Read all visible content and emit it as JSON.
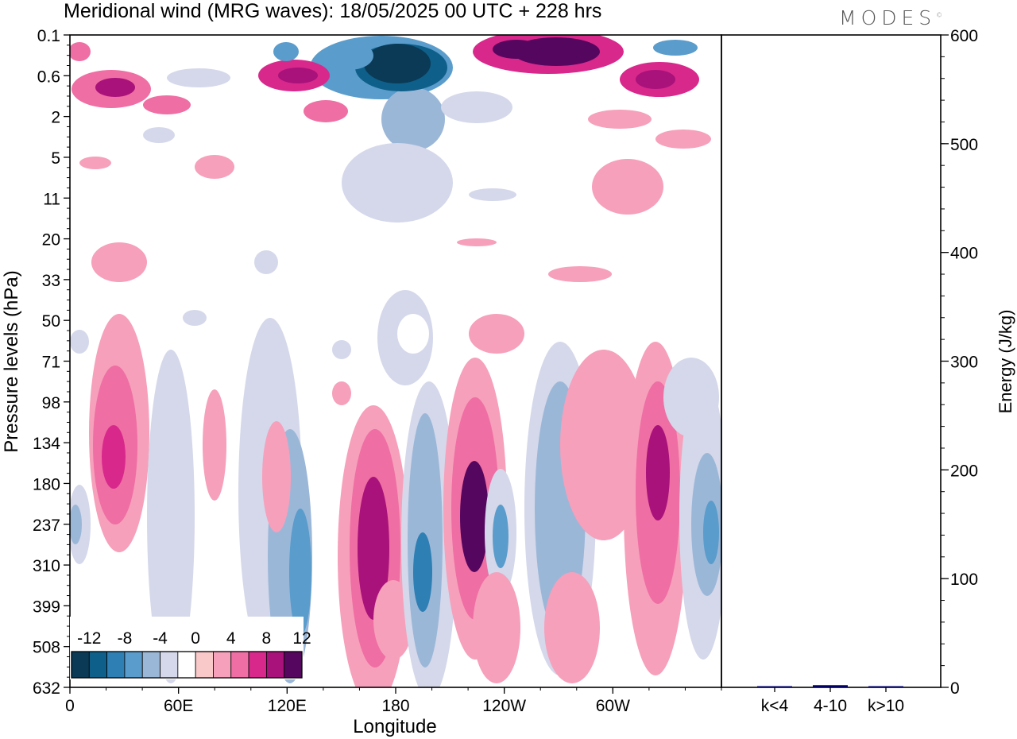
{
  "header": {
    "title": "Meridional wind (MRG waves):  18/05/2025  00 UTC  + 228 hrs",
    "brand": "MODES",
    "brand_mark": "©"
  },
  "chart_data": [
    {
      "type": "heatmap",
      "xlabel": "Longitude",
      "ylabel": "Pressure levels (hPa)",
      "x_ticks": [
        "0",
        "60E",
        "120E",
        "180",
        "120W",
        "60W"
      ],
      "x_tick_values": [
        0,
        60,
        120,
        180,
        240,
        300
      ],
      "xlim": [
        0,
        360
      ],
      "y_ticks": [
        "0.1",
        "0.6",
        "2",
        "5",
        "11",
        "20",
        "33",
        "50",
        "71",
        "98",
        "134",
        "180",
        "237",
        "310",
        "399",
        "508",
        "632"
      ],
      "colorbar_ticks": [
        "-12",
        "-8",
        "-4",
        "0",
        "4",
        "8",
        "12"
      ],
      "color_levels": [
        -14,
        -12,
        -10,
        -8,
        -6,
        -4,
        -2,
        2,
        4,
        6,
        8,
        10,
        12,
        14
      ],
      "colors": [
        "#0a3a55",
        "#0e5f8a",
        "#2e7fb3",
        "#5a9ccb",
        "#9bb7d8",
        "#d4d8ea",
        "#ffffff",
        "#f9c9c9",
        "#f6a0bb",
        "#ef6ea3",
        "#d8288c",
        "#a8127a",
        "#55065e"
      ],
      "features": [
        {
          "lon": 172,
          "level": "0.1",
          "value": -14
        },
        {
          "lon": 258,
          "level": "0.1",
          "value": 14
        },
        {
          "lon": 25,
          "level": "0.6",
          "value": 10
        },
        {
          "lon": 120,
          "level": "0.6",
          "value": 10
        },
        {
          "lon": 325,
          "level": "0.6",
          "value": 10
        },
        {
          "lon": 165,
          "level": "237",
          "value": 10
        },
        {
          "lon": 224,
          "level": "237",
          "value": 12
        },
        {
          "lon": 325,
          "level": "180",
          "value": 10
        },
        {
          "lon": 197,
          "level": "310",
          "value": -8
        },
        {
          "lon": 265,
          "level": "237",
          "value": -6
        },
        {
          "lon": 128,
          "level": "310",
          "value": -6
        },
        {
          "lon": 27,
          "level": "134",
          "value": 8
        }
      ]
    },
    {
      "type": "bar",
      "ylabel": "Energy (J/kg)",
      "categories": [
        "k<4",
        "4-10",
        "k>10"
      ],
      "values": [
        0,
        2,
        0
      ],
      "ylim": [
        0,
        600
      ],
      "y_ticks": [
        "0",
        "100",
        "200",
        "300",
        "400",
        "500",
        "600"
      ],
      "bar_color": "#000066"
    }
  ]
}
